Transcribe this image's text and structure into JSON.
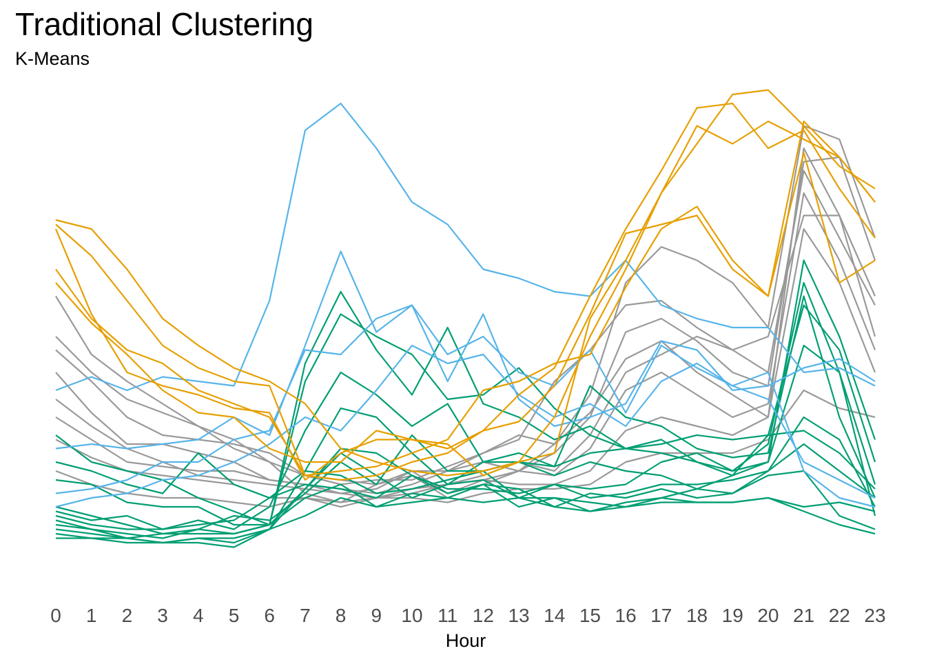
{
  "chart_data": {
    "type": "line",
    "title": "Traditional Clustering",
    "subtitle": "K-Means",
    "xlabel": "Hour",
    "ylabel": "",
    "x": [
      0,
      1,
      2,
      3,
      4,
      5,
      6,
      7,
      8,
      9,
      10,
      11,
      12,
      13,
      14,
      15,
      16,
      17,
      18,
      19,
      20,
      21,
      22,
      23
    ],
    "xtick_labels": [
      "0",
      "1",
      "2",
      "3",
      "4",
      "5",
      "6",
      "7",
      "8",
      "9",
      "10",
      "11",
      "12",
      "13",
      "14",
      "15",
      "16",
      "17",
      "18",
      "19",
      "20",
      "21",
      "22",
      "23"
    ],
    "ylim": [
      -5,
      105
    ],
    "grid": false,
    "legend": "none",
    "cluster_colors": {
      "blue": "#56B4E9",
      "orange": "#E69F00",
      "grey": "#999999",
      "green": "#009E73"
    },
    "series": [
      {
        "cluster": "grey",
        "values": [
          57,
          44,
          38,
          33,
          28,
          23,
          20,
          13,
          11,
          15,
          18,
          13,
          16,
          18,
          24,
          35,
          60,
          68,
          65,
          60,
          50,
          95,
          92,
          70
        ]
      },
      {
        "cluster": "grey",
        "values": [
          48,
          40,
          34,
          31,
          28,
          25,
          20,
          17,
          15,
          16,
          16,
          19,
          22,
          25,
          38,
          45,
          55,
          56,
          50,
          45,
          40,
          85,
          70,
          55
        ]
      },
      {
        "cluster": "grey",
        "values": [
          45,
          38,
          30,
          26,
          25,
          24,
          22,
          17,
          16,
          15,
          17,
          12,
          15,
          18,
          22,
          30,
          49,
          52,
          47,
          40,
          37,
          87,
          88,
          65
        ]
      },
      {
        "cluster": "grey",
        "values": [
          40,
          31,
          24,
          24,
          22,
          20,
          16,
          15,
          13,
          14,
          18,
          18,
          22,
          26,
          24,
          31,
          43,
          47,
          40,
          35,
          30,
          90,
          75,
          48
        ]
      },
      {
        "cluster": "grey",
        "values": [
          34,
          28,
          23,
          20,
          17,
          16,
          15,
          14,
          13,
          12,
          14,
          15,
          17,
          20,
          18,
          26,
          40,
          44,
          48,
          45,
          48,
          75,
          75,
          57
        ]
      },
      {
        "cluster": "grey",
        "values": [
          30,
          25,
          20,
          19,
          18,
          18,
          16,
          15,
          14,
          13,
          15,
          18,
          20,
          18,
          17,
          23,
          36,
          40,
          35,
          30,
          33,
          80,
          65,
          45
        ]
      },
      {
        "cluster": "grey",
        "values": [
          25,
          21,
          18,
          17,
          16,
          15,
          12,
          12,
          11,
          12,
          13,
          15,
          16,
          15,
          15,
          18,
          27,
          30,
          28,
          26,
          30,
          72,
          60,
          40
        ]
      },
      {
        "cluster": "grey",
        "values": [
          18,
          15,
          13,
          12,
          12,
          11,
          10,
          12,
          10,
          12,
          12,
          11,
          13,
          14,
          14,
          15,
          20,
          22,
          22,
          22,
          25,
          36,
          32,
          30
        ]
      },
      {
        "cluster": "green",
        "values": [
          26,
          20,
          18,
          16,
          12,
          9,
          6,
          42,
          58,
          45,
          35,
          50,
          33,
          30,
          25,
          28,
          23,
          25,
          20,
          18,
          20,
          65,
          48,
          25
        ]
      },
      {
        "cluster": "green",
        "values": [
          16,
          15,
          11,
          10,
          10,
          6,
          6,
          38,
          53,
          48,
          44,
          34,
          35,
          41,
          32,
          26,
          23,
          22,
          20,
          17,
          26,
          55,
          45,
          20
        ]
      },
      {
        "cluster": "green",
        "values": [
          8,
          6,
          5,
          5,
          7,
          5,
          10,
          27,
          40,
          35,
          28,
          33,
          20,
          22,
          19,
          37,
          30,
          28,
          23,
          21,
          22,
          57,
          30,
          12
        ]
      },
      {
        "cluster": "green",
        "values": [
          6,
          5,
          3,
          2,
          3,
          2,
          5,
          18,
          32,
          30,
          22,
          15,
          20,
          20,
          17,
          20,
          18,
          17,
          14,
          17,
          20,
          46,
          40,
          8
        ]
      },
      {
        "cluster": "green",
        "values": [
          10,
          8,
          6,
          4,
          5,
          8,
          7,
          13,
          20,
          15,
          26,
          18,
          18,
          12,
          15,
          14,
          15,
          20,
          22,
          18,
          24,
          60,
          40,
          15
        ]
      },
      {
        "cluster": "green",
        "values": [
          4,
          3,
          3,
          2,
          2,
          1,
          5,
          14,
          22,
          17,
          12,
          15,
          16,
          12,
          12,
          11,
          10,
          12,
          14,
          13,
          18,
          30,
          25,
          10
        ]
      },
      {
        "cluster": "green",
        "values": [
          7,
          5,
          4,
          3,
          5,
          4,
          6,
          12,
          15,
          10,
          13,
          12,
          15,
          10,
          12,
          9,
          11,
          12,
          11,
          11,
          12,
          9,
          6,
          4
        ]
      },
      {
        "cluster": "green",
        "values": [
          20,
          18,
          15,
          13,
          22,
          15,
          12,
          18,
          17,
          13,
          14,
          16,
          18,
          20,
          19,
          22,
          23,
          24,
          26,
          25,
          26,
          27,
          22,
          14
        ]
      },
      {
        "cluster": "green",
        "values": [
          9,
          7,
          8,
          5,
          6,
          7,
          12,
          15,
          14,
          12,
          17,
          13,
          15,
          14,
          10,
          13,
          12,
          14,
          12,
          13,
          17,
          18,
          8,
          5
        ]
      },
      {
        "cluster": "green",
        "values": [
          3,
          3,
          2,
          2,
          3,
          3,
          5,
          8,
          12,
          10,
          11,
          12,
          11,
          12,
          10,
          9,
          10,
          11,
          11,
          11,
          12,
          10,
          11,
          9
        ]
      },
      {
        "cluster": "green",
        "values": [
          5,
          4,
          3,
          4,
          4,
          4,
          6,
          14,
          23,
          22,
          17,
          14,
          14,
          13,
          15,
          12,
          13,
          15,
          15,
          16,
          18,
          24,
          18,
          12
        ]
      },
      {
        "cluster": "blue",
        "values": [
          36,
          39,
          36,
          39,
          38,
          37,
          56,
          94,
          100,
          90,
          78,
          73,
          63,
          61,
          58,
          57,
          65,
          55,
          52,
          50,
          50,
          40,
          41,
          37
        ]
      },
      {
        "cluster": "blue",
        "values": [
          23,
          24,
          23,
          24,
          25,
          30,
          26,
          46,
          67,
          49,
          55,
          38,
          53,
          34,
          28,
          30,
          33,
          47,
          45,
          36,
          37,
          41,
          43,
          38
        ]
      },
      {
        "cluster": "blue",
        "values": [
          13,
          14,
          16,
          20,
          20,
          25,
          27,
          45,
          44,
          52,
          55,
          44,
          48,
          40,
          37,
          45,
          31,
          46,
          41,
          37,
          34,
          20,
          16,
          12
        ]
      },
      {
        "cluster": "blue",
        "values": [
          10,
          12,
          13,
          16,
          17,
          20,
          24,
          30,
          27,
          36,
          46,
          42,
          44,
          35,
          30,
          33,
          28,
          38,
          42,
          37,
          40,
          18,
          12,
          10
        ]
      },
      {
        "cluster": "orange",
        "values": [
          74,
          72,
          63,
          52,
          46,
          41,
          38,
          33,
          23,
          20,
          18,
          17,
          18,
          20,
          22,
          52,
          65,
          80,
          95,
          91,
          96,
          92,
          88,
          78
        ]
      },
      {
        "cluster": "orange",
        "values": [
          73,
          66,
          56,
          46,
          41,
          38,
          37,
          17,
          16,
          17,
          20,
          22,
          27,
          35,
          41,
          57,
          72,
          85,
          99,
          100,
          90,
          94,
          81,
          70
        ]
      },
      {
        "cluster": "orange",
        "values": [
          63,
          52,
          45,
          42,
          36,
          33,
          30,
          17,
          18,
          19,
          22,
          25,
          36,
          38,
          42,
          44,
          59,
          72,
          77,
          65,
          57,
          96,
          88,
          78
        ]
      },
      {
        "cluster": "orange",
        "values": [
          60,
          51,
          44,
          36,
          31,
          30,
          23,
          20,
          20,
          27,
          25,
          24,
          17,
          20,
          30,
          48,
          63,
          80,
          91,
          102,
          103,
          95,
          86,
          81
        ]
      },
      {
        "cluster": "orange",
        "values": [
          72,
          53,
          40,
          37,
          35,
          32,
          31,
          16,
          22,
          25,
          25,
          23,
          27,
          29,
          37,
          53,
          71,
          73,
          75,
          63,
          57,
          89,
          60,
          65
        ]
      }
    ]
  }
}
